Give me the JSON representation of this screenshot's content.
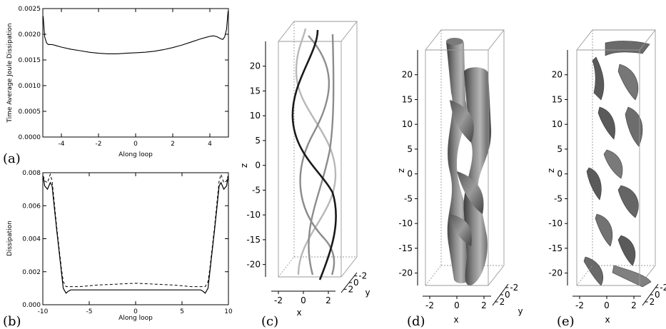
{
  "panel_labels": {
    "a": "(a)",
    "b": "(b)",
    "c": "(c)",
    "d": "(d)",
    "e": "(e)"
  },
  "colors": {
    "axis": "#000000",
    "box": "#9a9a9a",
    "strand_dark": "#1a1a1a",
    "strand_gray": "#8c8c8c",
    "strand_light": "#b8b8b8",
    "surface": "#6e6e6e"
  },
  "chart_data": [
    {
      "id": "a",
      "type": "line",
      "xlabel": "Along loop",
      "ylabel": "Time Average Joule Dissipation",
      "xlim": [
        -5,
        5
      ],
      "ylim": [
        0,
        0.0025
      ],
      "x_ticks": [
        "-4",
        "-2",
        "0",
        "2",
        "4"
      ],
      "y_ticks": [
        "0.0000",
        "0.0005",
        "0.0010",
        "0.0015",
        "0.0020",
        "0.0025"
      ],
      "series": [
        {
          "style": "solid",
          "x": [
            -4.98,
            -4.9,
            -4.8,
            -4.7,
            -4.6,
            -4.5,
            -4.3,
            -4.0,
            -3.5,
            -3.0,
            -2.5,
            -2.0,
            -1.5,
            -1.0,
            -0.5,
            0.0,
            0.5,
            1.0,
            1.5,
            2.0,
            2.5,
            3.0,
            3.5,
            3.8,
            4.0,
            4.2,
            4.4,
            4.6,
            4.7,
            4.8,
            4.9,
            4.98
          ],
          "y": [
            0.00235,
            0.00195,
            0.00183,
            0.0018,
            0.0018,
            0.0018,
            0.00178,
            0.00175,
            0.00171,
            0.00168,
            0.00165,
            0.00163,
            0.00162,
            0.00162,
            0.00163,
            0.00164,
            0.00165,
            0.00167,
            0.0017,
            0.00174,
            0.00179,
            0.00185,
            0.00191,
            0.00194,
            0.00196,
            0.00197,
            0.00195,
            0.00191,
            0.0019,
            0.00195,
            0.0021,
            0.00245
          ]
        }
      ]
    },
    {
      "id": "b",
      "type": "line",
      "xlabel": "Along loop",
      "ylabel": "Dissipation",
      "xlim": [
        -10,
        10
      ],
      "ylim": [
        0,
        0.008
      ],
      "x_ticks": [
        "-10",
        "-5",
        "0",
        "5",
        "10"
      ],
      "y_ticks": [
        "0.000",
        "0.002",
        "0.004",
        "0.006",
        "0.008"
      ],
      "series": [
        {
          "style": "solid",
          "x": [
            -9.95,
            -9.8,
            -9.5,
            -9.2,
            -9.0,
            -8.8,
            -8.5,
            -8.2,
            -8.0,
            -7.8,
            -7.5,
            -7.3,
            -7.0,
            -6.0,
            -4.0,
            -2.0,
            0.0,
            2.0,
            4.0,
            6.0,
            7.0,
            7.3,
            7.5,
            7.8,
            8.0,
            8.2,
            8.5,
            8.8,
            9.0,
            9.2,
            9.5,
            9.8,
            9.95
          ],
          "y": [
            0.0077,
            0.0072,
            0.007,
            0.0074,
            0.0072,
            0.0061,
            0.0045,
            0.003,
            0.002,
            0.001,
            0.0007,
            0.0008,
            0.0009,
            0.0009,
            0.0009,
            0.0009,
            0.0009,
            0.0009,
            0.0009,
            0.0009,
            0.0009,
            0.0008,
            0.0007,
            0.001,
            0.002,
            0.003,
            0.0045,
            0.0061,
            0.0072,
            0.0074,
            0.007,
            0.0072,
            0.0077
          ]
        },
        {
          "style": "dashed",
          "x": [
            -9.95,
            -9.8,
            -9.5,
            -9.2,
            -9.0,
            -8.8,
            -8.5,
            -8.2,
            -8.0,
            -7.8,
            -7.5,
            -7.3,
            -7.0,
            -6.0,
            -4.0,
            -2.0,
            0.0,
            2.0,
            4.0,
            6.0,
            7.0,
            7.3,
            7.5,
            7.8,
            8.0,
            8.2,
            8.5,
            8.8,
            9.0,
            9.2,
            9.5,
            9.8,
            9.95
          ],
          "y": [
            0.0078,
            0.0075,
            0.0074,
            0.0079,
            0.0075,
            0.0064,
            0.0047,
            0.0032,
            0.0022,
            0.0014,
            0.0011,
            0.0011,
            0.0011,
            0.0011,
            0.0012,
            0.00125,
            0.0013,
            0.00125,
            0.0012,
            0.0011,
            0.0011,
            0.0011,
            0.0011,
            0.0014,
            0.0022,
            0.0032,
            0.0047,
            0.0064,
            0.0075,
            0.0079,
            0.0074,
            0.0075,
            0.0078
          ]
        }
      ]
    }
  ],
  "panels_3d": {
    "z_ticks": [
      "20",
      "15",
      "10",
      "5",
      "0",
      "-5",
      "-10",
      "-15",
      "-20"
    ],
    "x_ticks": [
      "-2",
      "0",
      "2"
    ],
    "y_ticks": [
      "2",
      "0",
      "-2"
    ],
    "z_label": "z",
    "x_label": "x",
    "y_label": "y"
  }
}
